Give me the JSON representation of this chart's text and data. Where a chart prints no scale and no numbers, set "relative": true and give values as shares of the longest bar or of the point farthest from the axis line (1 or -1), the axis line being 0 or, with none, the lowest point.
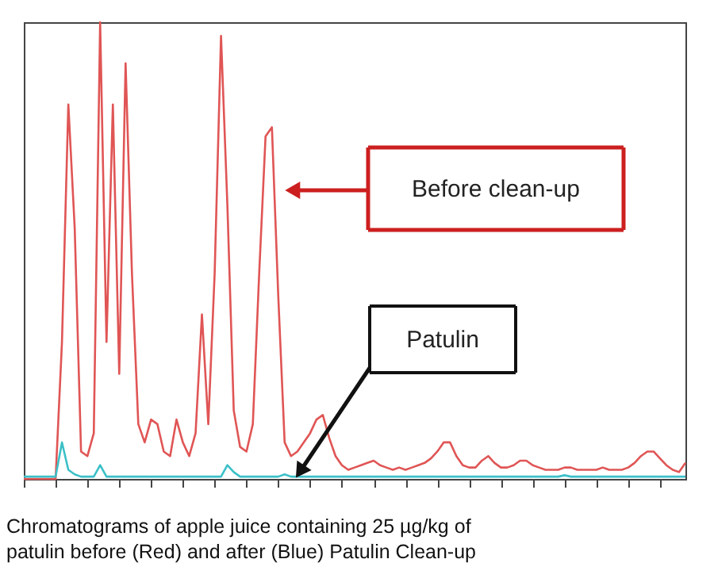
{
  "chart_data": {
    "type": "line",
    "relative": true,
    "tick_labels": false,
    "grid": false,
    "line_style": "solid",
    "marker": "none",
    "categories": [
      null,
      null,
      null,
      null,
      null,
      null,
      null,
      null,
      null,
      null,
      null,
      null,
      null,
      null,
      null,
      null,
      null,
      null,
      null,
      null,
      null,
      null,
      null,
      null,
      null,
      null,
      null,
      null,
      null,
      null,
      null,
      null,
      null,
      null,
      null,
      null,
      null,
      null,
      null,
      null,
      null,
      null,
      null,
      null,
      null,
      null,
      null,
      null,
      null,
      null,
      null,
      null,
      null,
      null,
      null,
      null,
      null,
      null,
      null,
      null,
      null,
      null,
      null,
      null,
      null,
      null,
      null,
      null,
      null,
      null,
      null,
      null,
      null,
      null,
      null,
      null,
      null,
      null,
      null,
      null,
      null,
      null,
      null,
      null,
      null,
      null,
      null,
      null,
      null,
      null,
      null,
      null,
      null,
      null,
      null,
      null,
      null,
      null,
      null,
      null,
      null,
      null,
      null,
      null,
      null
    ],
    "series": [
      {
        "color": "#e05555",
        "values": [
          0,
          0,
          0,
          0,
          0,
          0,
          0.3,
          0.82,
          0.55,
          0.06,
          0.05,
          0.1,
          1.0,
          0.3,
          0.82,
          0.23,
          0.91,
          0.45,
          0.12,
          0.08,
          0.13,
          0.12,
          0.06,
          0.05,
          0.13,
          0.08,
          0.05,
          0.1,
          0.36,
          0.12,
          0.45,
          0.97,
          0.6,
          0.15,
          0.07,
          0.06,
          0.12,
          0.45,
          0.75,
          0.77,
          0.4,
          0.08,
          0.05,
          0.06,
          0.08,
          0.1,
          0.13,
          0.14,
          0.09,
          0.05,
          0.03,
          0.02,
          0.025,
          0.03,
          0.035,
          0.04,
          0.03,
          0.025,
          0.02,
          0.025,
          0.02,
          0.025,
          0.03,
          0.035,
          0.045,
          0.06,
          0.08,
          0.08,
          0.05,
          0.03,
          0.025,
          0.025,
          0.04,
          0.05,
          0.035,
          0.025,
          0.025,
          0.03,
          0.04,
          0.04,
          0.03,
          0.025,
          0.02,
          0.02,
          0.02,
          0.025,
          0.025,
          0.02,
          0.02,
          0.02,
          0.02,
          0.025,
          0.02,
          0.02,
          0.02,
          0.025,
          0.035,
          0.05,
          0.06,
          0.06,
          0.045,
          0.03,
          0.02,
          0.015,
          0.035
        ]
      },
      {
        "color": "#3cc0c8",
        "values": [
          0.005,
          0.005,
          0.005,
          0.005,
          0.005,
          0.005,
          0.08,
          0.02,
          0.01,
          0.005,
          0.005,
          0.005,
          0.03,
          0.005,
          0.005,
          0.005,
          0.005,
          0.005,
          0.005,
          0.005,
          0.005,
          0.005,
          0.005,
          0.005,
          0.005,
          0.005,
          0.005,
          0.005,
          0.005,
          0.005,
          0.005,
          0.005,
          0.03,
          0.015,
          0.005,
          0.005,
          0.005,
          0.005,
          0.005,
          0.005,
          0.005,
          0.01,
          0.005,
          0.005,
          0.005,
          0.005,
          0.005,
          0.005,
          0.005,
          0.005,
          0.005,
          0.005,
          0.005,
          0.005,
          0.005,
          0.005,
          0.005,
          0.005,
          0.005,
          0.005,
          0.005,
          0.005,
          0.005,
          0.005,
          0.005,
          0.005,
          0.005,
          0.005,
          0.005,
          0.005,
          0.005,
          0.005,
          0.005,
          0.005,
          0.005,
          0.005,
          0.005,
          0.005,
          0.005,
          0.005,
          0.005,
          0.005,
          0.005,
          0.005,
          0.005,
          0.008,
          0.005,
          0.005,
          0.005,
          0.005,
          0.005,
          0.005,
          0.005,
          0.005,
          0.005,
          0.005,
          0.005,
          0.005,
          0.005,
          0.005,
          0.005,
          0.005,
          0.005,
          0.005,
          0.005
        ]
      }
    ],
    "annotations": [
      "Before clean-up",
      "Patulin",
      "Chromatograms of apple juice containing 25 µg/kg of patulin before (Red) and after (Blue) Patulin Clean-up"
    ]
  }
}
